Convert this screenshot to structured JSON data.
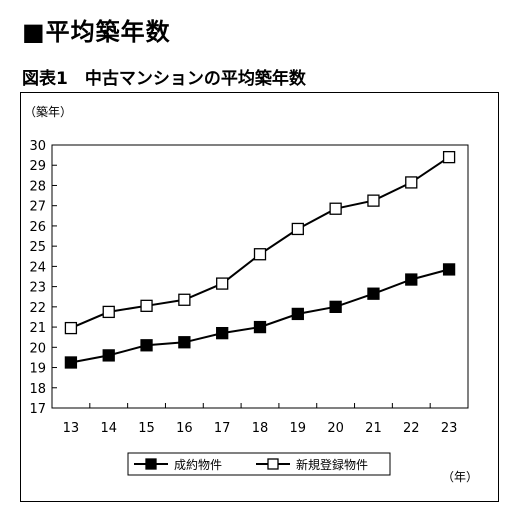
{
  "section_heading": "■平均築年数",
  "figure_title": "図表1　中古マンションの平均築年数",
  "chart_data": {
    "type": "line",
    "title": "図表1　中古マンションの平均築年数",
    "ylabel": "（築年）",
    "xlabel": "（年）",
    "ylim": [
      17,
      30
    ],
    "x": [
      "13",
      "14",
      "15",
      "16",
      "17",
      "18",
      "19",
      "20",
      "21",
      "22",
      "23"
    ],
    "yticks": [
      17,
      18,
      19,
      20,
      21,
      22,
      23,
      24,
      25,
      26,
      27,
      28,
      29,
      30
    ],
    "grid": false,
    "legend_position": "bottom",
    "series": [
      {
        "name": "成約物件",
        "marker": "filled-square",
        "color": "#000000",
        "values": [
          19.25,
          19.6,
          20.1,
          20.25,
          20.7,
          21.0,
          21.65,
          22.0,
          22.65,
          23.35,
          23.85
        ]
      },
      {
        "name": "新規登録物件",
        "marker": "open-square",
        "color": "#000000",
        "values": [
          20.95,
          21.75,
          22.05,
          22.35,
          23.15,
          24.6,
          25.85,
          26.85,
          27.25,
          28.15,
          29.4
        ]
      }
    ]
  }
}
